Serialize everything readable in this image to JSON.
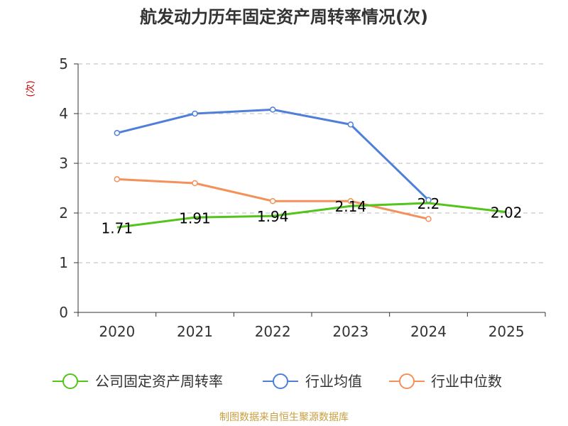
{
  "chart_data": {
    "type": "line",
    "title": "航发动力历年固定资产周转率情况(次)",
    "ylabel": "(次)",
    "xlabel": "",
    "categories": [
      "2020",
      "2021",
      "2022",
      "2023",
      "2024",
      "2025"
    ],
    "ylim": [
      0,
      5
    ],
    "yticks": [
      "0",
      "1",
      "2",
      "3",
      "4",
      "5"
    ],
    "grid": true,
    "legend_position": "bottom",
    "series": [
      {
        "name": "公司固定资产周转率",
        "color": "#52c41a",
        "values": [
          1.71,
          1.91,
          1.94,
          2.14,
          2.2,
          2.02
        ],
        "labels": [
          "1.71",
          "1.91",
          "1.94",
          "2.14",
          "2.2",
          "2.02"
        ],
        "show_points": false
      },
      {
        "name": "行业均值",
        "color": "#4f7fd8",
        "values": [
          3.61,
          4.0,
          4.08,
          3.78,
          2.26,
          null
        ],
        "show_points": true
      },
      {
        "name": "行业中位数",
        "color": "#f4905a",
        "values": [
          2.68,
          2.6,
          2.24,
          2.24,
          1.88,
          null
        ],
        "show_points": true
      }
    ]
  },
  "source": "制图数据来自恒生聚源数据库"
}
